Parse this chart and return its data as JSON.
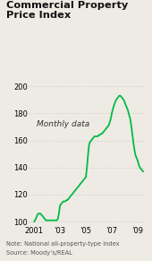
{
  "title_line1": "Commercial Property",
  "title_line2": "Price Index",
  "annotation": "Monthly data",
  "note1": "Note: National all-property-type index",
  "note2": "Source: Moody’s/REAL",
  "ylim": [
    97,
    202
  ],
  "yticks": [
    100,
    120,
    140,
    160,
    180,
    200
  ],
  "xlim": [
    2000.6,
    2009.75
  ],
  "xtick_positions": [
    2001,
    2003,
    2005,
    2007,
    2009
  ],
  "xtick_labels": [
    "2001",
    "’03",
    "’05",
    "’07",
    "’09"
  ],
  "line_color": "#00bb44",
  "background_color": "#eeebe5",
  "grid_color": "#aaaaaa",
  "title_color": "#111111",
  "note_color": "#555555",
  "series_x": [
    2001.0,
    2001.08,
    2001.17,
    2001.25,
    2001.33,
    2001.42,
    2001.5,
    2001.58,
    2001.67,
    2001.75,
    2001.83,
    2001.92,
    2002.0,
    2002.08,
    2002.17,
    2002.25,
    2002.33,
    2002.42,
    2002.5,
    2002.58,
    2002.67,
    2002.75,
    2002.83,
    2002.92,
    2003.0,
    2003.08,
    2003.17,
    2003.25,
    2003.33,
    2003.42,
    2003.5,
    2003.58,
    2003.67,
    2003.75,
    2003.83,
    2003.92,
    2004.0,
    2004.08,
    2004.17,
    2004.25,
    2004.33,
    2004.42,
    2004.5,
    2004.58,
    2004.67,
    2004.75,
    2004.83,
    2004.92,
    2005.0,
    2005.08,
    2005.17,
    2005.25,
    2005.33,
    2005.42,
    2005.5,
    2005.58,
    2005.67,
    2005.75,
    2005.83,
    2005.92,
    2006.0,
    2006.08,
    2006.17,
    2006.25,
    2006.33,
    2006.42,
    2006.5,
    2006.58,
    2006.67,
    2006.75,
    2006.83,
    2006.92,
    2007.0,
    2007.08,
    2007.17,
    2007.25,
    2007.33,
    2007.42,
    2007.5,
    2007.58,
    2007.67,
    2007.75,
    2007.83,
    2007.92,
    2008.0,
    2008.08,
    2008.17,
    2008.25,
    2008.33,
    2008.42,
    2008.5,
    2008.58,
    2008.67,
    2008.75,
    2008.83,
    2008.92,
    2009.0,
    2009.08,
    2009.17,
    2009.25,
    2009.33,
    2009.42
  ],
  "series_y": [
    100,
    101,
    103,
    105,
    106,
    106,
    106,
    105,
    104,
    103,
    102,
    101,
    101,
    101,
    101,
    101,
    101,
    101,
    101,
    101,
    101,
    101,
    102,
    106,
    112,
    113,
    114,
    115,
    115,
    115,
    116,
    116,
    117,
    118,
    119,
    120,
    121,
    122,
    123,
    124,
    125,
    126,
    127,
    128,
    129,
    130,
    131,
    132,
    133,
    140,
    150,
    157,
    159,
    160,
    161,
    162,
    163,
    163,
    163,
    163,
    164,
    164,
    165,
    165,
    166,
    167,
    168,
    169,
    170,
    171,
    173,
    176,
    180,
    183,
    186,
    188,
    190,
    191,
    192,
    193,
    193,
    192,
    191,
    190,
    188,
    186,
    184,
    182,
    179,
    176,
    171,
    165,
    158,
    153,
    149,
    147,
    145,
    142,
    140,
    139,
    138,
    137
  ]
}
